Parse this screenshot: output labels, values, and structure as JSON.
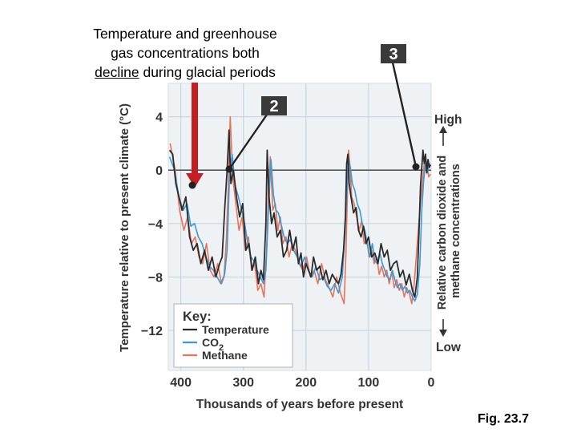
{
  "caption": {
    "line1": "Temperature and greenhouse",
    "line2": "gas concentrations both",
    "line3_underlined": "decline",
    "line3_rest": " during glacial periods"
  },
  "figure_label": "Fig. 23.7",
  "callouts": {
    "two": "2",
    "three": "3"
  },
  "colors": {
    "temperature": "#2b2b2b",
    "co2": "#3a9ad9",
    "methane": "#e8735a",
    "arrow": "#c41e22",
    "grid": "#c9d6df",
    "callout_bg": "#3a3a3a"
  },
  "chart_data": {
    "type": "line",
    "title": "",
    "xlabel": "Thousands of years before present",
    "ylabel": "Temperature relative to present climate (°C)",
    "ylabel_right": "Relative carbon dioxide and methane concentrations",
    "right_axis_high": "High",
    "right_axis_low": "Low",
    "xlim": [
      420,
      0
    ],
    "ylim": [
      -15,
      6.5
    ],
    "xticks": [
      400,
      300,
      200,
      100,
      0
    ],
    "xtick_labels": [
      "400",
      "300",
      "200",
      "100",
      "0"
    ],
    "yticks": [
      4,
      0,
      -4,
      -8,
      -12
    ],
    "ytick_labels": [
      "4",
      "0",
      "−4",
      "−8",
      "−12"
    ],
    "reference_line_y": 0,
    "legend": {
      "title": "Key:",
      "entries": [
        "Temperature",
        "CO2",
        "Methane"
      ],
      "placement": "bottom-left"
    },
    "series": [
      {
        "name": "Temperature",
        "x": [
          418,
          413,
          408,
          403,
          398,
          392,
          386,
          380,
          374,
          368,
          362,
          356,
          350,
          344,
          338,
          334,
          330,
          326,
          323,
          320,
          316,
          311,
          306,
          301,
          296,
          291,
          286,
          281,
          276,
          272,
          268,
          264,
          262,
          259,
          255,
          251,
          246,
          241,
          236,
          231,
          226,
          221,
          216,
          212,
          208,
          204,
          200,
          196,
          192,
          188,
          183,
          178,
          173,
          168,
          163,
          158,
          153,
          148,
          144,
          140,
          137,
          135,
          133,
          131,
          128,
          124,
          120,
          116,
          112,
          108,
          104,
          100,
          95,
          90,
          85,
          80,
          75,
          70,
          65,
          60,
          55,
          50,
          45,
          40,
          35,
          30,
          26,
          22,
          19,
          17,
          15,
          13,
          11,
          9,
          7,
          5,
          3,
          1
        ],
        "values": [
          1.5,
          1.2,
          -1,
          -2,
          -3,
          -2,
          -5,
          -6,
          -5.5,
          -7,
          -6,
          -7.5,
          -6.5,
          -8,
          -7,
          -6.5,
          -3,
          0,
          3,
          -1,
          0,
          -2,
          -3.5,
          -2.5,
          -6,
          -5.5,
          -7.5,
          -6.5,
          -8.5,
          -7.5,
          -8.2,
          -4,
          1.5,
          -2,
          -4,
          -3.2,
          -5,
          -4.5,
          -6.5,
          -6,
          -4.5,
          -6,
          -5,
          -7,
          -6.2,
          -8,
          -7,
          -7.5,
          -8,
          -6.5,
          -7.5,
          -7.2,
          -8.2,
          -7.5,
          -8.5,
          -7.8,
          -8.2,
          -8.5,
          -7.8,
          -6,
          -3.5,
          0.5,
          1.2,
          -1,
          -2,
          -3.2,
          -2.8,
          -4.5,
          -5,
          -4.2,
          -5.5,
          -5,
          -6.5,
          -6.2,
          -7,
          -5.5,
          -6.5,
          -6,
          -7.5,
          -7,
          -6.8,
          -8,
          -7.5,
          -8.6,
          -7.8,
          -9,
          -9.5,
          -8,
          -4,
          -1.2,
          0.2,
          1.5,
          0.5,
          1.2,
          -0.2,
          0.8,
          0.2,
          0.4
        ]
      },
      {
        "name": "CO2",
        "x": [
          418,
          410,
          403,
          396,
          390,
          384,
          378,
          372,
          366,
          360,
          354,
          348,
          342,
          336,
          330,
          326,
          322,
          318,
          313,
          308,
          303,
          298,
          293,
          288,
          283,
          278,
          273,
          268,
          264,
          260,
          256,
          252,
          248,
          244,
          240,
          235,
          230,
          225,
          220,
          214,
          208,
          202,
          196,
          190,
          184,
          178,
          172,
          166,
          160,
          154,
          148,
          142,
          138,
          135,
          132,
          129,
          126,
          122,
          118,
          114,
          110,
          106,
          102,
          98,
          94,
          90,
          86,
          82,
          78,
          74,
          70,
          66,
          62,
          58,
          54,
          50,
          46,
          42,
          38,
          34,
          30,
          26,
          22,
          18,
          15,
          12,
          9,
          6,
          3,
          1
        ],
        "values": [
          1,
          0,
          -2,
          -3,
          -2.5,
          -4.2,
          -4,
          -5,
          -5.5,
          -6.5,
          -7.2,
          -7.5,
          -8,
          -8.5,
          -7.8,
          -6,
          -0.2,
          1.2,
          -1.2,
          -2,
          -3,
          -4,
          -5.5,
          -6.5,
          -6.8,
          -7.5,
          -8,
          -8.5,
          -7.5,
          -3,
          0.8,
          -1.8,
          -3,
          -3.2,
          -4,
          -5,
          -5.5,
          -5.2,
          -6,
          -6.5,
          -7.2,
          -6.5,
          -7.5,
          -8,
          -7.2,
          -8.2,
          -8,
          -8.7,
          -9,
          -8.5,
          -9.2,
          -8,
          -5,
          -2,
          0.8,
          0.2,
          -1,
          -1.5,
          -2.5,
          -3,
          -4,
          -4.5,
          -5.5,
          -6.5,
          -5.5,
          -6.8,
          -7,
          -6.2,
          -7,
          -7.5,
          -8,
          -8.2,
          -7.5,
          -8.2,
          -8.8,
          -8.5,
          -9,
          -8.7,
          -9.2,
          -9,
          -9.5,
          -9.8,
          -9.3,
          -7,
          -3,
          -0.8,
          0.5,
          -0.2,
          0.5,
          0.3
        ]
      },
      {
        "name": "Methane",
        "x": [
          417,
          409,
          402,
          395,
          389,
          383,
          377,
          371,
          365,
          359,
          353,
          347,
          341,
          335,
          331,
          327,
          324,
          321,
          317,
          312,
          307,
          302,
          297,
          292,
          287,
          282,
          277,
          272,
          267,
          263,
          260,
          257,
          253,
          249,
          245,
          241,
          237,
          232,
          227,
          222,
          217,
          211,
          205,
          199,
          193,
          187,
          181,
          175,
          169,
          163,
          157,
          151,
          145,
          139,
          136,
          134,
          132,
          130,
          127,
          123,
          119,
          115,
          111,
          107,
          103,
          99,
          95,
          91,
          87,
          83,
          79,
          75,
          71,
          67,
          63,
          59,
          55,
          51,
          47,
          43,
          39,
          35,
          31,
          27,
          23,
          19,
          16,
          13,
          10,
          7,
          4,
          1
        ],
        "values": [
          2,
          0,
          -3,
          -4.5,
          -3.5,
          -5.5,
          -5,
          -6.5,
          -7,
          -5.5,
          -7.5,
          -8,
          -7,
          -8.5,
          -8,
          -5,
          -1,
          4,
          -0.5,
          -2.5,
          -4.5,
          -3.5,
          -6,
          -5,
          -7.5,
          -7,
          -9,
          -8.5,
          -9.5,
          -6,
          -1.5,
          1,
          -3,
          -2.5,
          -4.5,
          -3.5,
          -5.5,
          -5,
          -6.5,
          -5.5,
          -6,
          -7,
          -7.5,
          -6.5,
          -8,
          -7.5,
          -8.5,
          -7,
          -8.2,
          -8.8,
          -9.5,
          -8,
          -9.2,
          -10,
          -6,
          -2,
          1.5,
          0.5,
          -2,
          -2.5,
          -3.5,
          -4.5,
          -3.8,
          -5.5,
          -5.2,
          -6.5,
          -6,
          -7,
          -6.5,
          -7.8,
          -7.2,
          -8,
          -7.5,
          -8.5,
          -7.6,
          -8.8,
          -8.2,
          -9,
          -8.5,
          -9.5,
          -8.8,
          -9.2,
          -10,
          -8.5,
          -6,
          -3.5,
          -2,
          -0.5,
          1,
          0.5,
          -0.5,
          -0.3
        ]
      }
    ]
  }
}
